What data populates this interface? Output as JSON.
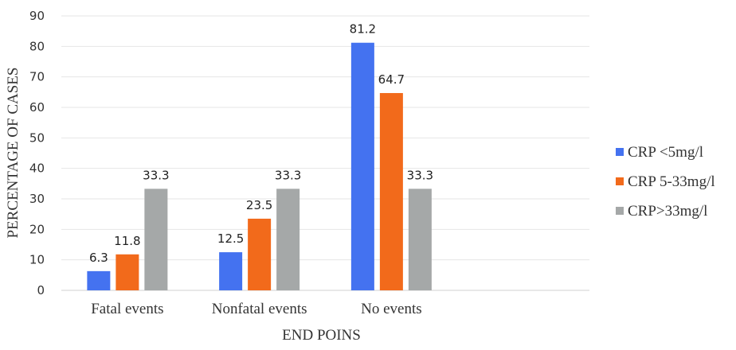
{
  "chart_data": {
    "type": "bar",
    "title": "",
    "xlabel": "END POINS",
    "ylabel": "PERCENTAGE OF CASES",
    "categories": [
      "Fatal events",
      "Nonfatal events",
      "No events"
    ],
    "series": [
      {
        "name": "CRP <5mg/l",
        "color": "#4472f0",
        "values": [
          6.3,
          12.5,
          81.2
        ]
      },
      {
        "name": "CRP 5-33mg/l",
        "color": "#f26a1b",
        "values": [
          11.8,
          23.5,
          64.7
        ]
      },
      {
        "name": "CRP>33mg/l",
        "color": "#a5a8a8",
        "values": [
          33.3,
          33.3,
          33.3
        ]
      }
    ],
    "ylim": [
      0,
      90
    ],
    "yticks": [
      0,
      10,
      20,
      30,
      40,
      50,
      60,
      70,
      80,
      90
    ],
    "grid": true,
    "legend": "right"
  }
}
